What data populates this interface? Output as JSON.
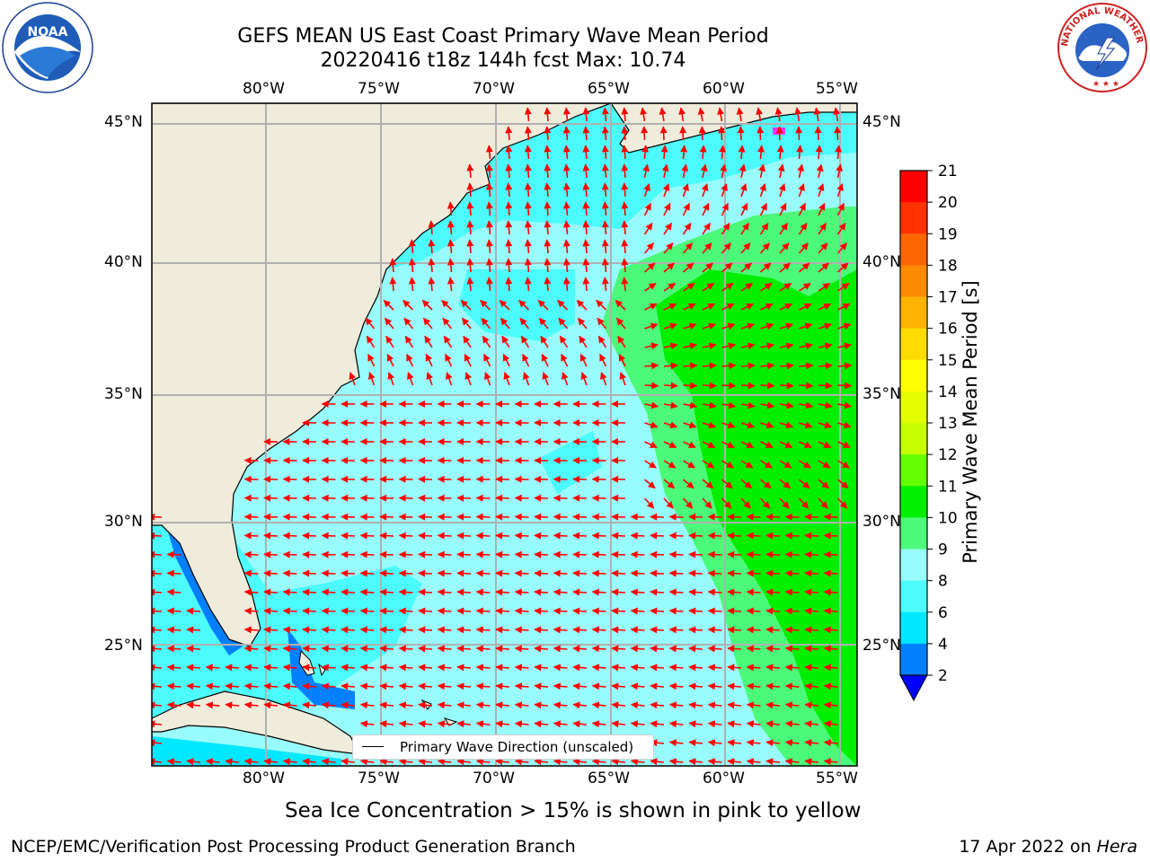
{
  "title": {
    "line1": "GEFS MEAN US East Coast Primary Wave Mean Period",
    "line2": "20220416 t18z 144h fcst   Max: 10.74"
  },
  "map": {
    "lon_labels": [
      "80°W",
      "75°W",
      "70°W",
      "65°W",
      "60°W",
      "55°W"
    ],
    "lat_labels": [
      "45°N",
      "40°N",
      "35°N",
      "30°N",
      "25°N"
    ],
    "legend_label": "Primary Wave Direction (unscaled)",
    "colors": {
      "land": "#efecdc",
      "ocean_default": "#99fcfc",
      "arrow": "#ff0000",
      "grid": "#b0b0b0",
      "sea_ice": "#ff33ff"
    }
  },
  "colorbar": {
    "label": "Primary Wave Mean Period [s]",
    "ticks": [
      "21",
      "20",
      "19",
      "18",
      "17",
      "16",
      "15",
      "14",
      "13",
      "12",
      "11",
      "10",
      "9",
      "8",
      "6",
      "4",
      "2"
    ],
    "colors": [
      "#ff0000",
      "#ff3300",
      "#ff6600",
      "#ff8c00",
      "#ffb300",
      "#ffdd00",
      "#ffff00",
      "#e6ff00",
      "#c8ff00",
      "#66ff00",
      "#00ee00",
      "#4cfa7a",
      "#99fcfc",
      "#4cfcfc",
      "#00e8ff",
      "#0080ff",
      "#0000ff"
    ]
  },
  "footer": {
    "note": "Sea Ice Concentration > 15% is shown in pink to yellow",
    "left": "NCEP/EMC/Verification Post Processing Product Generation Branch",
    "right_prefix": "17 Apr 2022 on ",
    "right_machine": "Hera"
  },
  "logos": {
    "left": "NOAA",
    "right": "NATIONAL WEATHER SERVICE"
  }
}
